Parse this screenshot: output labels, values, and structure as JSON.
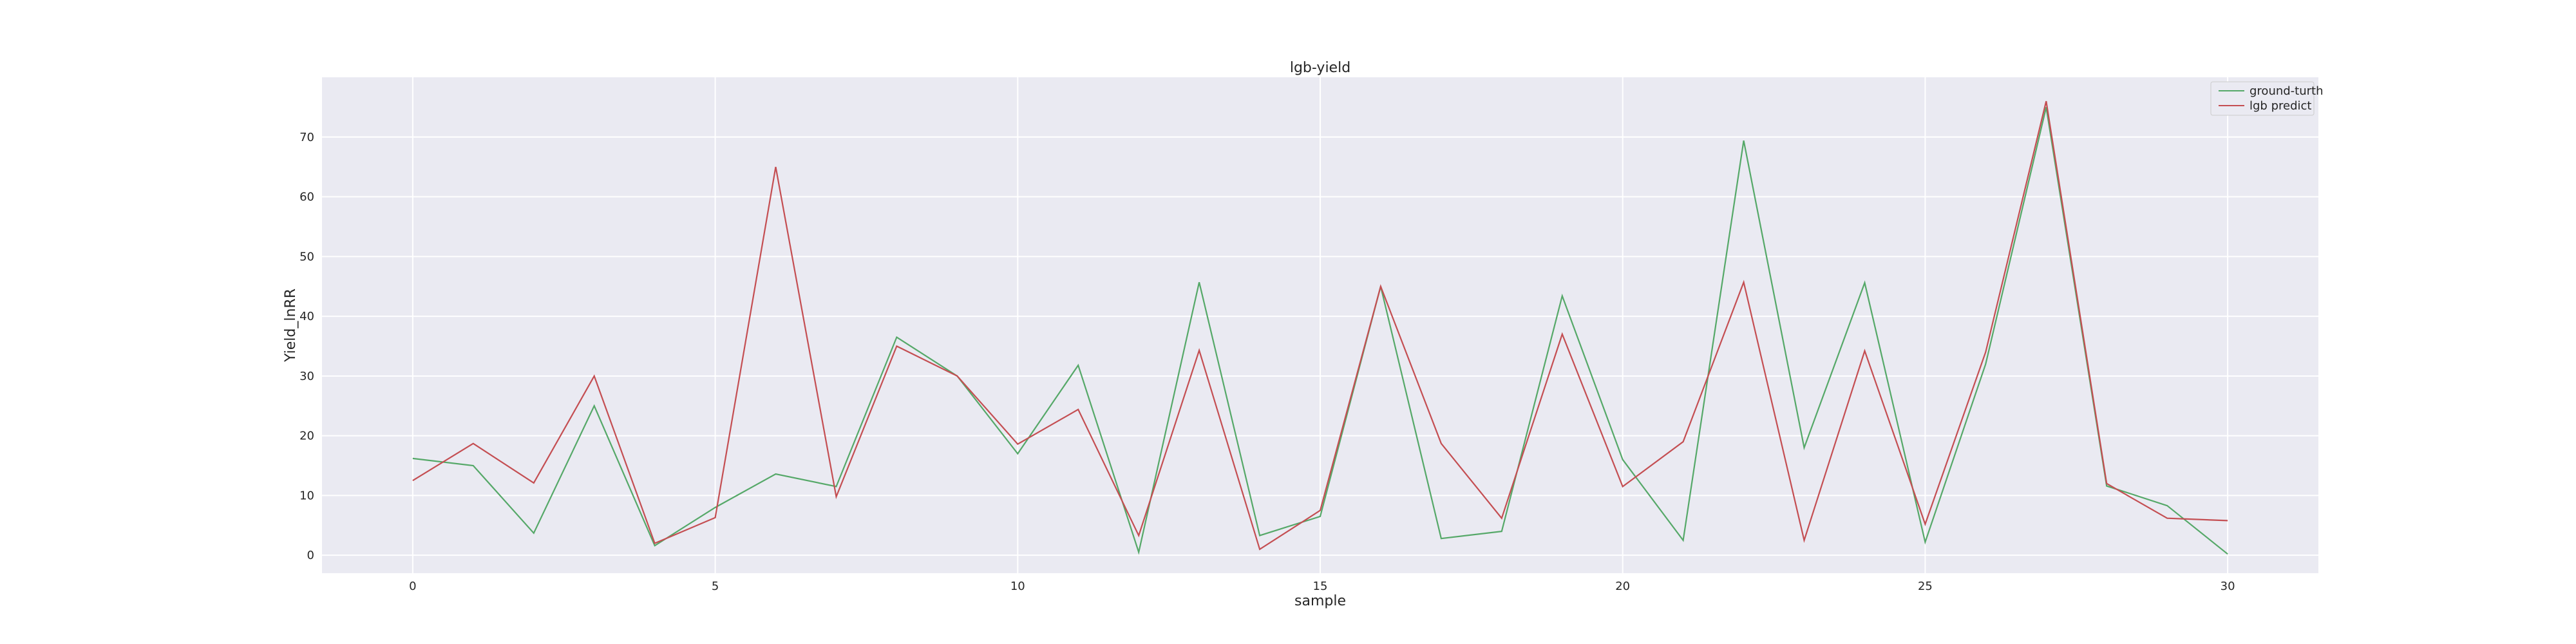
{
  "chart_data": {
    "type": "line",
    "title": "lgb-yield",
    "xlabel": "sample",
    "ylabel": "Yield_lnRR",
    "x": [
      0,
      1,
      2,
      3,
      4,
      5,
      6,
      7,
      8,
      9,
      10,
      11,
      12,
      13,
      14,
      15,
      16,
      17,
      18,
      19,
      20,
      21,
      22,
      23,
      24,
      25,
      26,
      27,
      28,
      29,
      30
    ],
    "xlim": [
      -1.5,
      31.5
    ],
    "ylim": [
      -3,
      80
    ],
    "xticks": [
      0,
      5,
      10,
      15,
      20,
      25,
      30
    ],
    "yticks": [
      0,
      10,
      20,
      30,
      40,
      50,
      60,
      70
    ],
    "grid": true,
    "legend_position": "top-right",
    "series": [
      {
        "name": "ground-turth",
        "color": "#55a868",
        "values": [
          16.2,
          15.0,
          3.7,
          25.0,
          1.6,
          8.0,
          13.6,
          11.5,
          36.5,
          30.0,
          17.0,
          31.8,
          0.5,
          45.7,
          3.3,
          6.5,
          45.0,
          2.8,
          4.0,
          43.4,
          16.0,
          2.5,
          69.4,
          18.0,
          45.6,
          2.2,
          32.0,
          75.0,
          11.6,
          8.3,
          0.2
        ]
      },
      {
        "name": "lgb predict",
        "color": "#c44e52",
        "values": [
          12.5,
          18.7,
          12.1,
          30.0,
          2.0,
          6.3,
          65.0,
          9.8,
          35.0,
          30.0,
          18.6,
          24.4,
          3.3,
          34.3,
          1.0,
          7.5,
          45.0,
          18.7,
          6.2,
          37.0,
          11.5,
          19.0,
          45.7,
          2.5,
          34.2,
          5.2,
          34.0,
          76.0,
          12.0,
          6.2,
          5.8
        ]
      }
    ]
  }
}
